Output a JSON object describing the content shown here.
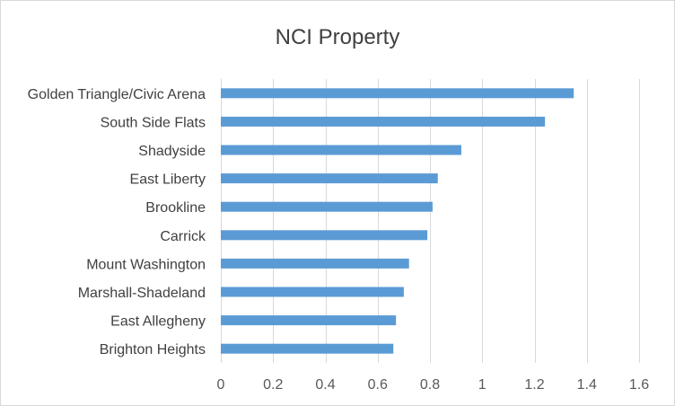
{
  "chart_data": {
    "type": "bar",
    "orientation": "horizontal",
    "title": "NCI Property",
    "xlabel": "",
    "ylabel": "",
    "categories": [
      "Golden Triangle/Civic Arena",
      "South Side Flats",
      "Shadyside",
      "East Liberty",
      "Brookline",
      "Carrick",
      "Mount Washington",
      "Marshall-Shadeland",
      "East Allegheny",
      "Brighton Heights"
    ],
    "values": [
      1.35,
      1.24,
      0.92,
      0.83,
      0.81,
      0.79,
      0.72,
      0.7,
      0.67,
      0.66
    ],
    "xlim": [
      0,
      1.6
    ],
    "xticks": [
      "0",
      "0.2",
      "0.4",
      "0.6",
      "0.8",
      "1",
      "1.2",
      "1.4",
      "1.6"
    ],
    "grid": true,
    "legend": "none",
    "bar_color": "#5b9bd5",
    "grid_color": "#d9d9d9"
  }
}
